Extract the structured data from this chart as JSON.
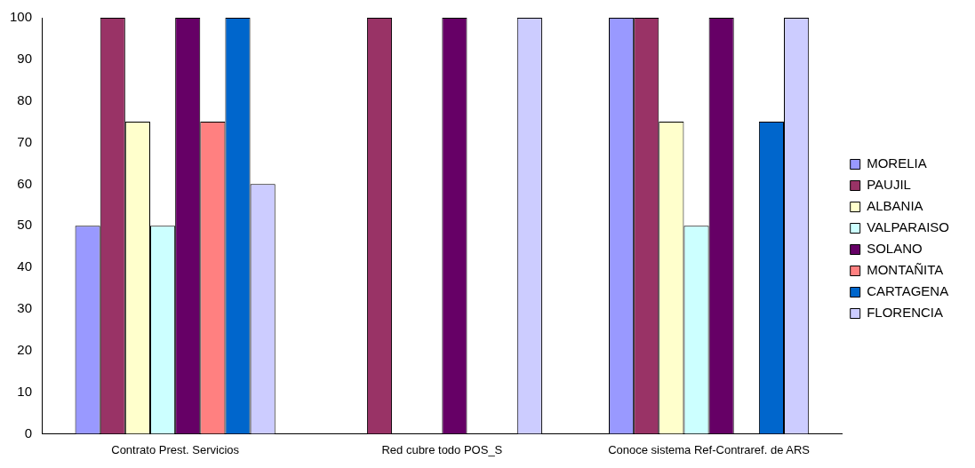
{
  "chart_data": {
    "type": "bar",
    "categories": [
      "Contrato Prest. Servicios",
      "Red cubre todo POS_S",
      "Conoce sistema Ref-Contraref. de ARS"
    ],
    "series": [
      {
        "name": "MORELIA",
        "color": "#9999ff",
        "values": [
          50,
          0,
          100
        ]
      },
      {
        "name": "PAUJIL",
        "color": "#993366",
        "values": [
          100,
          100,
          100
        ]
      },
      {
        "name": "ALBANIA",
        "color": "#ffffcc",
        "values": [
          75,
          0,
          75
        ]
      },
      {
        "name": "VALPARAISO",
        "color": "#ccffff",
        "values": [
          50,
          0,
          50
        ]
      },
      {
        "name": "SOLANO",
        "color": "#660066",
        "values": [
          100,
          100,
          100
        ]
      },
      {
        "name": "MONTAÑITA",
        "color": "#ff8080",
        "values": [
          75,
          0,
          0
        ]
      },
      {
        "name": "CARTAGENA",
        "color": "#0066cc",
        "values": [
          100,
          0,
          75
        ]
      },
      {
        "name": "FLORENCIA",
        "color": "#ccccff",
        "values": [
          60,
          100,
          100
        ]
      }
    ],
    "ylim": [
      0,
      100
    ],
    "yticks": [
      0,
      10,
      20,
      30,
      40,
      50,
      60,
      70,
      80,
      90,
      100
    ],
    "grid": false,
    "legend": "right"
  }
}
